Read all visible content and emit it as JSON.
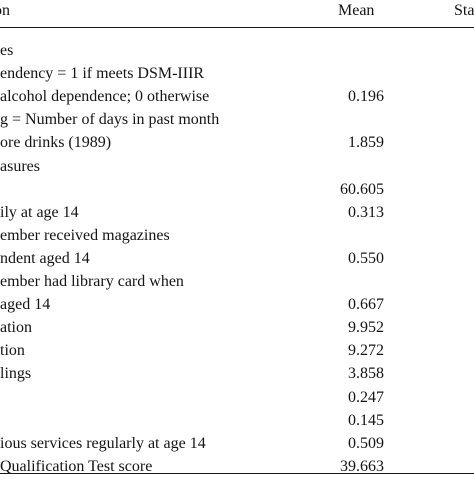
{
  "header": {
    "description": "on",
    "mean": "Mean",
    "sd": "Sta"
  },
  "rows": [
    {
      "desc": "es",
      "mean": ""
    },
    {
      "desc": "endency = 1 if meets DSM-IIIR",
      "mean": ""
    },
    {
      "desc": "alcohol dependence; 0 otherwise",
      "mean": "0.196"
    },
    {
      "desc": "g = Number of days in past month",
      "mean": ""
    },
    {
      "desc": "ore drinks (1989)",
      "mean": "1.859"
    },
    {
      "desc": "asures",
      "mean": ""
    },
    {
      "desc": "",
      "mean": "60.605"
    },
    {
      "desc": "ily at age 14",
      "mean": "0.313"
    },
    {
      "desc": "ember received magazines",
      "mean": ""
    },
    {
      "desc": "ndent aged 14",
      "mean": "0.550"
    },
    {
      "desc": "ember had library card when",
      "mean": ""
    },
    {
      "desc": "aged 14",
      "mean": "0.667"
    },
    {
      "desc": "ation",
      "mean": "9.952"
    },
    {
      "desc": "tion",
      "mean": "9.272"
    },
    {
      "desc": "lings",
      "mean": "3.858"
    },
    {
      "desc": "",
      "mean": "0.247"
    },
    {
      "desc": "",
      "mean": "0.145"
    },
    {
      "desc": "ious services regularly at age 14",
      "mean": "0.509"
    },
    {
      "desc": " Qualification Test score",
      "mean": "39.663"
    }
  ]
}
